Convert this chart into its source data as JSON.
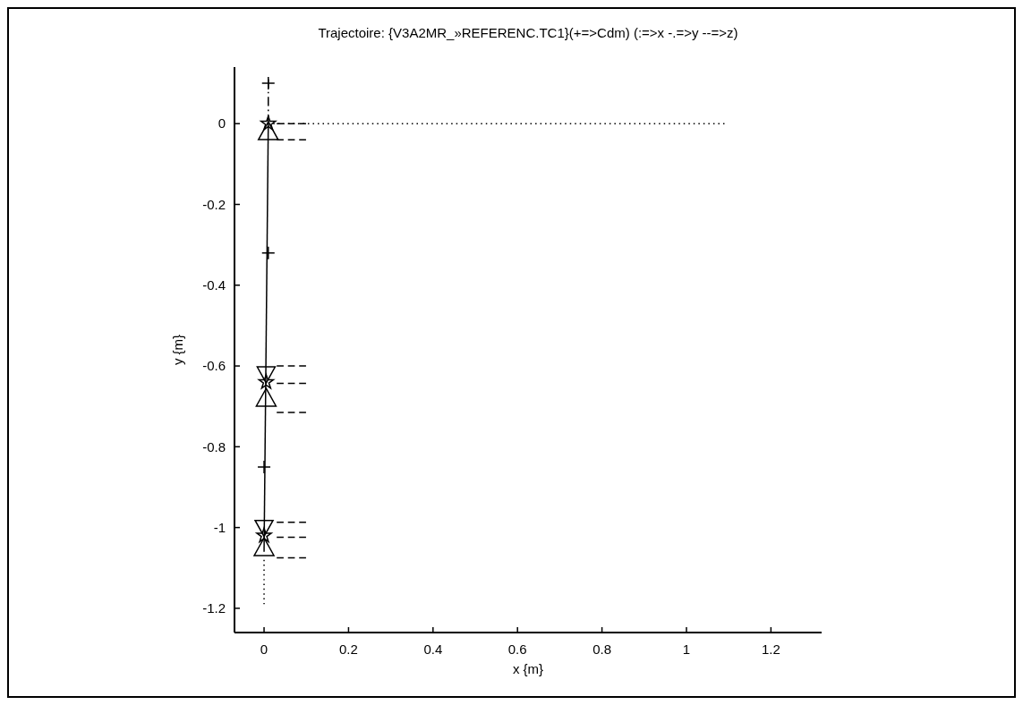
{
  "chart_data": {
    "type": "line",
    "title": "Trajectoire: {V3A2MR_»REFERENC.TC1}(+=>Cdm) (:=>x -.=>y --=>z)",
    "xlabel": "x {m}",
    "ylabel": "y {m}",
    "xlim": [
      -0.07,
      1.32
    ],
    "ylim": [
      -1.26,
      0.14
    ],
    "xticks": [
      0,
      0.2,
      0.4,
      0.6,
      0.8,
      1,
      1.2
    ],
    "yticks": [
      0,
      -0.2,
      -0.4,
      -0.6,
      -0.8,
      -1,
      -1.2
    ],
    "series": [
      {
        "color": "#000000",
        "line_style": "solid",
        "marker": "none",
        "x": [
          0.01,
          0
        ],
        "values": [
          0,
          -1.06
        ]
      },
      {
        "color": "#000000",
        "line_style": "dotted",
        "marker": "none",
        "x": [
          0.01,
          1.09
        ],
        "values": [
          0,
          0
        ]
      },
      {
        "color": "#000000",
        "line_style": "dotted",
        "marker": "none",
        "x": [
          0,
          0
        ],
        "values": [
          -1.08,
          -1.19
        ]
      },
      {
        "color": "#000000",
        "line_style": "dashdot",
        "marker": "none",
        "x": [
          0.01,
          0.01
        ],
        "values": [
          0.11,
          0
        ]
      },
      {
        "color": "#000000",
        "line_style": "dashed",
        "marker": "none",
        "x": [
          0.03,
          0.1
        ],
        "values": [
          0,
          0
        ]
      },
      {
        "color": "#000000",
        "line_style": "dashed",
        "marker": "none",
        "x": [
          0.03,
          0.1
        ],
        "values": [
          -0.04,
          -0.04
        ]
      },
      {
        "color": "#000000",
        "line_style": "dashed",
        "marker": "none",
        "x": [
          0.03,
          0.1
        ],
        "values": [
          -0.6,
          -0.6
        ]
      },
      {
        "color": "#000000",
        "line_style": "dashed",
        "marker": "none",
        "x": [
          0.03,
          0.1
        ],
        "values": [
          -0.643,
          -0.643
        ]
      },
      {
        "color": "#000000",
        "line_style": "dashed",
        "marker": "none",
        "x": [
          0.03,
          0.1
        ],
        "values": [
          -0.715,
          -0.715
        ]
      },
      {
        "color": "#000000",
        "line_style": "dashed",
        "marker": "none",
        "x": [
          0.03,
          0.1
        ],
        "values": [
          -0.987,
          -0.987
        ]
      },
      {
        "color": "#000000",
        "line_style": "dashed",
        "marker": "none",
        "x": [
          0.03,
          0.1
        ],
        "values": [
          -1.024,
          -1.024
        ]
      },
      {
        "color": "#000000",
        "line_style": "dashed",
        "marker": "none",
        "x": [
          0.03,
          0.1
        ],
        "values": [
          -1.075,
          -1.075
        ]
      },
      {
        "type": "scatter",
        "color": "#000000",
        "marker": "triangle",
        "x": [
          0.01,
          0.005,
          0
        ],
        "values": [
          -0.02,
          -0.68,
          -1.05
        ]
      },
      {
        "type": "scatter",
        "color": "#000000",
        "marker": "triangle-down",
        "x": [
          0.005,
          0
        ],
        "values": [
          -0.62,
          -1.0
        ]
      },
      {
        "type": "scatter",
        "color": "#000000",
        "marker": "cross",
        "x": [
          0.01,
          0.01,
          0
        ],
        "values": [
          0.1,
          -0.32,
          -0.85
        ]
      },
      {
        "type": "scatter",
        "color": "#000000",
        "marker": "star",
        "x": [
          0.01,
          0.005,
          0
        ],
        "values": [
          0,
          -0.64,
          -1.02
        ]
      }
    ]
  }
}
